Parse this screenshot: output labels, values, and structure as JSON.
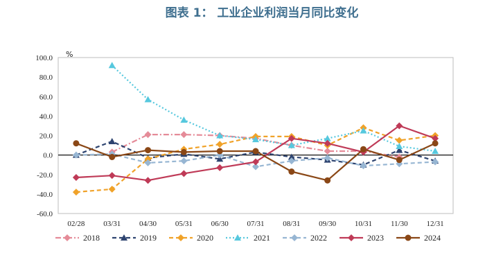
{
  "chart_data": {
    "type": "line",
    "title": "图表 1： 工业企业利润当月同比变化",
    "ylabel": "%",
    "xlabel": "",
    "ylim": [
      -60,
      100
    ],
    "yticks": [
      "100.0",
      "80.0",
      "60.0",
      "40.0",
      "20.0",
      "0.0",
      "-20.0",
      "-40.0",
      "-60.0"
    ],
    "categories": [
      "02/28",
      "03/31",
      "04/30",
      "05/31",
      "06/30",
      "07/31",
      "08/31",
      "09/30",
      "10/31",
      "11/30",
      "12/31"
    ],
    "legend_position": "bottom",
    "series": [
      {
        "name": "2018",
        "color": "#e58b98",
        "dash": "dashdot",
        "marker": "diamond",
        "values": [
          null,
          3,
          21,
          21,
          20,
          17,
          10,
          4,
          4,
          -2,
          null
        ]
      },
      {
        "name": "2019",
        "color": "#2e4470",
        "dash": "dashed",
        "marker": "triangle",
        "values": [
          0,
          14,
          -3,
          1,
          -4,
          3,
          -2,
          -5,
          -10,
          5,
          -6
        ]
      },
      {
        "name": "2020",
        "color": "#f0a229",
        "dash": "dashed",
        "marker": "diamond",
        "values": [
          -38,
          -35,
          -4,
          6,
          11,
          19,
          19,
          10,
          28,
          15,
          20
        ]
      },
      {
        "name": "2021",
        "color": "#56c8de",
        "dash": "dotted",
        "marker": "triangle",
        "values": [
          null,
          92,
          57,
          36,
          20,
          16,
          10,
          17,
          25,
          9,
          4
        ]
      },
      {
        "name": "2022",
        "color": "#97b6d3",
        "dash": "dashed",
        "marker": "diamond",
        "values": [
          0,
          1,
          -8,
          -6,
          0,
          -12,
          -6,
          -3,
          -11,
          -9,
          -7
        ]
      },
      {
        "name": "2023",
        "color": "#bf3a57",
        "dash": "solid",
        "marker": "diamond",
        "values": [
          -23,
          -21,
          -26,
          -19,
          -13,
          -7,
          17,
          12,
          3,
          30,
          17
        ]
      },
      {
        "name": "2024",
        "color": "#8a4716",
        "dash": "solid",
        "marker": "circle",
        "values": [
          12,
          -2,
          5,
          3,
          4,
          4,
          -17,
          -26,
          6,
          -5,
          12
        ]
      }
    ]
  }
}
